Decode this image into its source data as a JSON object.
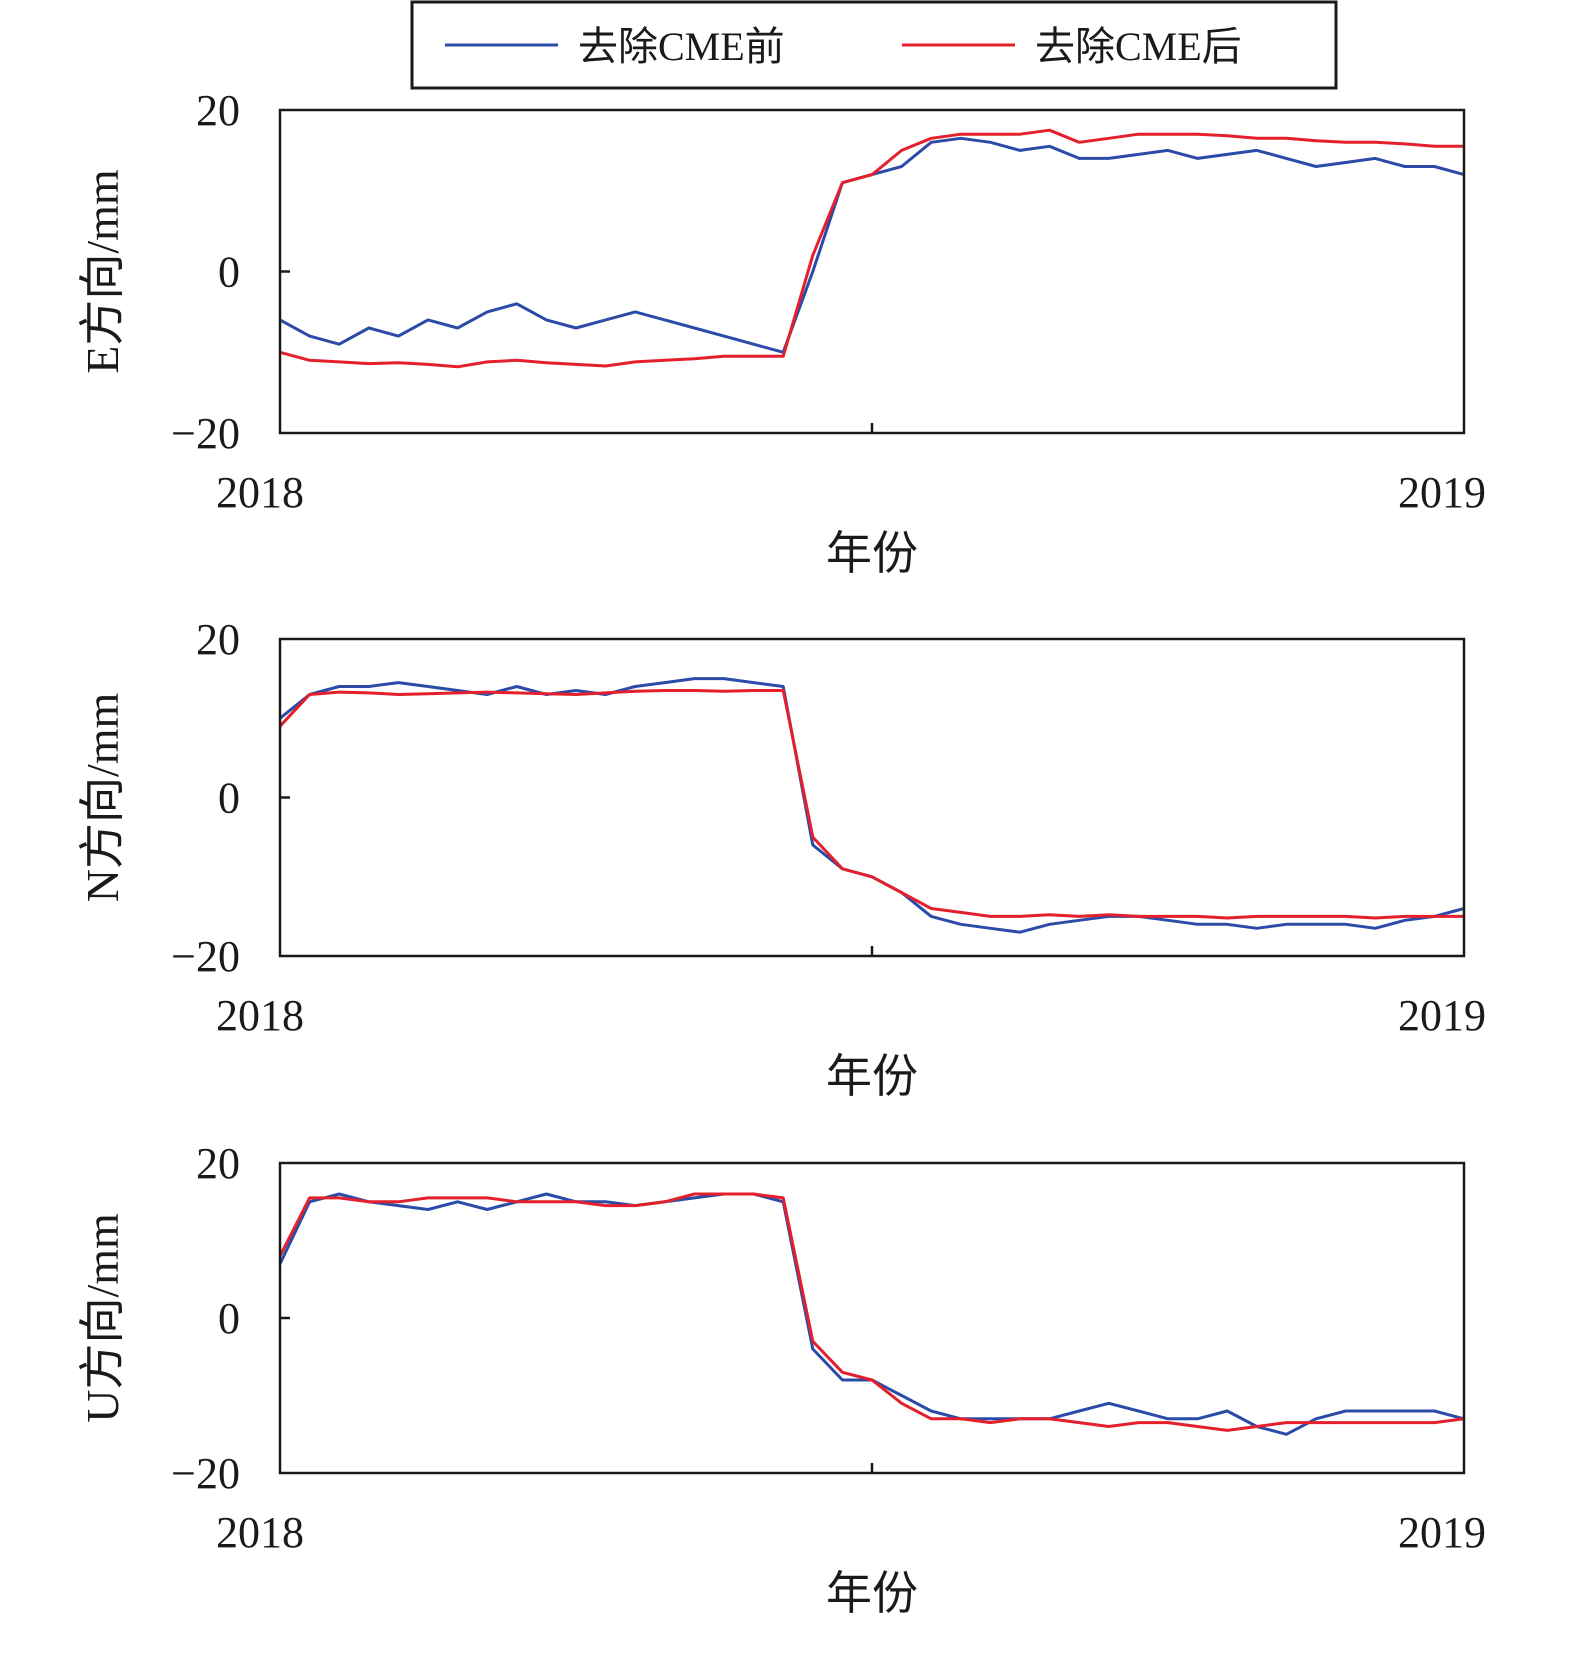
{
  "legend": {
    "items": [
      {
        "label": "去除CME前",
        "color": "#2b4ba8"
      },
      {
        "label": "去除CME后",
        "color": "#e3202b"
      }
    ],
    "placement": "top"
  },
  "chart_data": [
    {
      "type": "line",
      "ylabel": "E方向/mm",
      "xlabel": "年份",
      "xlim": [
        2018,
        2019
      ],
      "x_ticks": [
        "2018",
        "2019"
      ],
      "ylim": [
        -20,
        20
      ],
      "y_ticks": [
        "20",
        "0",
        "−20"
      ],
      "grid": false,
      "x_step": 0.025,
      "series": [
        {
          "name": "去除CME前",
          "color": "#2b4ba8",
          "values": [
            -6,
            -8,
            -9,
            -7,
            -8,
            -6,
            -7,
            -5,
            -4,
            -6,
            -7,
            -6,
            -5,
            -6,
            -7,
            -8,
            -9,
            -10,
            0,
            11,
            12,
            13,
            16,
            16.5,
            16,
            15,
            15.5,
            14,
            14,
            14.5,
            15,
            14,
            14.5,
            15,
            14,
            13,
            13.5,
            14,
            13,
            13,
            12
          ]
        },
        {
          "name": "去除CME后",
          "color": "#e3202b",
          "values": [
            -10,
            -11,
            -11.2,
            -11.4,
            -11.3,
            -11.5,
            -11.8,
            -11.2,
            -11,
            -11.3,
            -11.5,
            -11.7,
            -11.2,
            -11,
            -10.8,
            -10.5,
            -10.5,
            -10.5,
            2,
            11,
            12,
            15,
            16.5,
            17,
            17,
            17,
            17.5,
            16,
            16.5,
            17,
            17,
            17,
            16.8,
            16.5,
            16.5,
            16.2,
            16,
            16,
            15.8,
            15.5,
            15.5
          ]
        }
      ]
    },
    {
      "type": "line",
      "ylabel": "N方向/mm",
      "xlabel": "年份",
      "xlim": [
        2018,
        2019
      ],
      "x_ticks": [
        "2018",
        "2019"
      ],
      "ylim": [
        -20,
        20
      ],
      "y_ticks": [
        "20",
        "0",
        "−20"
      ],
      "grid": false,
      "x_step": 0.025,
      "series": [
        {
          "name": "去除CME前",
          "color": "#2b4ba8",
          "values": [
            10,
            13,
            14,
            14,
            14.5,
            14,
            13.5,
            13,
            14,
            13,
            13.5,
            13,
            14,
            14.5,
            15,
            15,
            14.5,
            14,
            -6,
            -9,
            -10,
            -12,
            -15,
            -16,
            -16.5,
            -17,
            -16,
            -15.5,
            -15,
            -15,
            -15.5,
            -16,
            -16,
            -16.5,
            -16,
            -16,
            -16,
            -16.5,
            -15.5,
            -15,
            -14
          ]
        },
        {
          "name": "去除CME后",
          "color": "#e3202b",
          "values": [
            9,
            13,
            13.3,
            13.2,
            13,
            13.1,
            13.2,
            13.3,
            13.2,
            13.1,
            13,
            13.2,
            13.4,
            13.5,
            13.5,
            13.4,
            13.5,
            13.5,
            -5,
            -9,
            -10,
            -12,
            -14,
            -14.5,
            -15,
            -15,
            -14.8,
            -15,
            -14.8,
            -15,
            -15,
            -15,
            -15.2,
            -15,
            -15,
            -15,
            -15,
            -15.2,
            -15,
            -15,
            -15
          ]
        }
      ]
    },
    {
      "type": "line",
      "ylabel": "U方向/mm",
      "xlabel": "年份",
      "xlim": [
        2018,
        2019
      ],
      "x_ticks": [
        "2018",
        "2019"
      ],
      "ylim": [
        -20,
        20
      ],
      "y_ticks": [
        "20",
        "0",
        "−20"
      ],
      "grid": false,
      "x_step": 0.025,
      "series": [
        {
          "name": "去除CME前",
          "color": "#2b4ba8",
          "values": [
            7,
            15,
            16,
            15,
            14.5,
            14,
            15,
            14,
            15,
            16,
            15,
            15,
            14.5,
            15,
            15.5,
            16,
            16,
            15,
            -4,
            -8,
            -8,
            -10,
            -12,
            -13,
            -13,
            -13,
            -13,
            -12,
            -11,
            -12,
            -13,
            -13,
            -12,
            -14,
            -15,
            -13,
            -12,
            -12,
            -12,
            -12,
            -13
          ]
        },
        {
          "name": "去除CME后",
          "color": "#e3202b",
          "values": [
            8,
            15.5,
            15.5,
            15,
            15,
            15.5,
            15.5,
            15.5,
            15,
            15,
            15,
            14.5,
            14.5,
            15,
            16,
            16,
            16,
            15.5,
            -3,
            -7,
            -8,
            -11,
            -13,
            -13,
            -13.5,
            -13,
            -13,
            -13.5,
            -14,
            -13.5,
            -13.5,
            -14,
            -14.5,
            -14,
            -13.5,
            -13.5,
            -13.5,
            -13.5,
            -13.5,
            -13.5,
            -13
          ]
        }
      ]
    }
  ]
}
